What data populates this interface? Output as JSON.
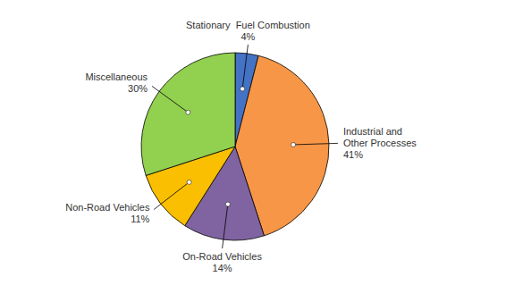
{
  "chart_data": {
    "type": "pie",
    "categories": [
      "Stationary  Fuel Combustion",
      "Industrial and\nOther Processes",
      "On-Road Vehicles",
      "Non-Road Vehicles",
      "Miscellaneous"
    ],
    "values": [
      4,
      41,
      14,
      11,
      30
    ],
    "value_labels": [
      "4%",
      "41%",
      "14%",
      "11%",
      "30%"
    ],
    "colors": [
      "#4472C4",
      "#F79646",
      "#8064A2",
      "#F9BF00",
      "#92D050"
    ],
    "data_labels": true
  }
}
